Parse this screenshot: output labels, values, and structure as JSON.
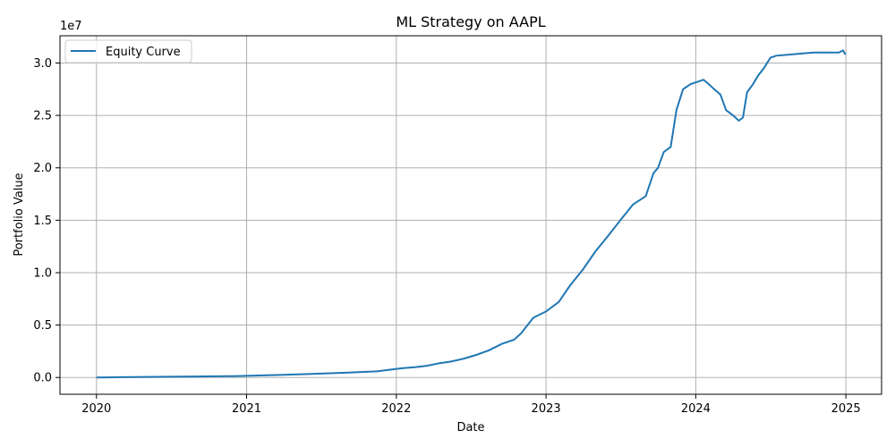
{
  "chart_data": {
    "type": "line",
    "title": "ML Strategy on AAPL",
    "xlabel": "Date",
    "ylabel": "Portfolio Value",
    "y_offset_label": "1e7",
    "x_range": [
      "2019-10-04",
      "2025-03-29"
    ],
    "ylim": [
      -0.16,
      3.26
    ],
    "y_unit_scale": "1e7",
    "x_ticks": [
      "2020",
      "2021",
      "2022",
      "2023",
      "2024",
      "2025"
    ],
    "y_ticks": [
      "0.0",
      "0.5",
      "1.0",
      "1.5",
      "2.0",
      "2.5",
      "3.0"
    ],
    "grid": true,
    "legend_position": "upper-left",
    "series": [
      {
        "name": "Equity Curve",
        "color": "#1f77b4",
        "x": [
          "2020-01-01",
          "2020-03-01",
          "2020-06-01",
          "2020-09-01",
          "2020-12-01",
          "2021-02-01",
          "2021-04-01",
          "2021-06-01",
          "2021-08-01",
          "2021-10-01",
          "2021-11-15",
          "2021-12-15",
          "2022-01-15",
          "2022-02-15",
          "2022-03-15",
          "2022-04-15",
          "2022-05-15",
          "2022-06-15",
          "2022-07-15",
          "2022-08-15",
          "2022-09-15",
          "2022-10-15",
          "2022-11-01",
          "2022-12-01",
          "2023-01-01",
          "2023-02-01",
          "2023-03-01",
          "2023-04-01",
          "2023-05-01",
          "2023-06-01",
          "2023-07-01",
          "2023-08-01",
          "2023-09-01",
          "2023-09-20",
          "2023-10-01",
          "2023-10-15",
          "2023-11-01",
          "2023-11-15",
          "2023-12-01",
          "2023-12-20",
          "2024-01-05",
          "2024-01-20",
          "2024-02-01",
          "2024-02-15",
          "2024-03-01",
          "2024-03-15",
          "2024-04-01",
          "2024-04-15",
          "2024-04-25",
          "2024-05-05",
          "2024-05-20",
          "2024-06-01",
          "2024-06-15",
          "2024-07-01",
          "2024-07-15",
          "2024-08-15",
          "2024-09-15",
          "2024-10-15",
          "2024-11-15",
          "2024-12-15",
          "2024-12-25",
          "2024-12-31"
        ],
        "y": [
          0.0,
          0.003,
          0.006,
          0.01,
          0.013,
          0.019,
          0.026,
          0.033,
          0.041,
          0.051,
          0.058,
          0.074,
          0.088,
          0.098,
          0.11,
          0.135,
          0.152,
          0.18,
          0.215,
          0.26,
          0.32,
          0.36,
          0.42,
          0.57,
          0.63,
          0.72,
          0.88,
          1.03,
          1.2,
          1.35,
          1.5,
          1.65,
          1.73,
          1.95,
          2.0,
          2.15,
          2.2,
          2.55,
          2.75,
          2.8,
          2.82,
          2.84,
          2.8,
          2.75,
          2.7,
          2.55,
          2.5,
          2.45,
          2.48,
          2.72,
          2.8,
          2.88,
          2.95,
          3.05,
          3.07,
          3.08,
          3.09,
          3.1,
          3.1,
          3.1,
          3.12,
          3.08
        ]
      }
    ]
  }
}
